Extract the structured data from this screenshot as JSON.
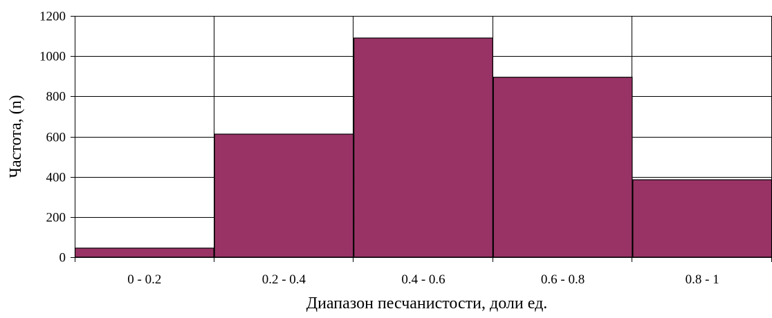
{
  "chart_data": {
    "type": "bar",
    "title": "",
    "xlabel": "Диапазон песчанистости, доли ед.",
    "ylabel": "Частота, (n)",
    "categories": [
      "0 - 0.2",
      "0.2 - 0.4",
      "0.4 - 0.6",
      "0.6 - 0.8",
      "0.8 - 1"
    ],
    "values": [
      45,
      612,
      1090,
      895,
      385
    ],
    "ylim": [
      0,
      1200
    ],
    "yticks": [
      "0",
      "200",
      "400",
      "600",
      "800",
      "1000",
      "1200"
    ],
    "grid": true,
    "legend": "none",
    "bar_color": "#993366",
    "bar_edge_color": "#000000",
    "gap_width": 0
  }
}
